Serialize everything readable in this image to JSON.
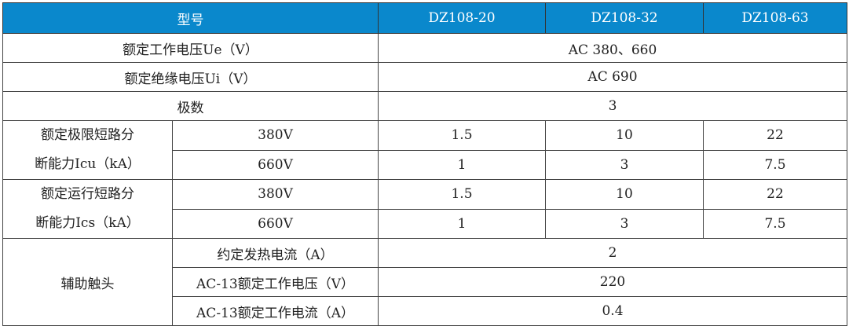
{
  "header": {
    "label": "型号",
    "models": [
      "DZ108-20",
      "DZ108-32",
      "DZ108-63"
    ],
    "color": "#0a88cc"
  },
  "rows": {
    "ue": {
      "label": "额定工作电压Ue（V）",
      "value": "AC 380、660"
    },
    "ui": {
      "label": "额定绝缘电压Ui（V）",
      "value": "AC 690"
    },
    "poles": {
      "label": "极数",
      "value": "3"
    },
    "icu": {
      "label_line1": "额定极限短路分",
      "label_line2": "断能力Icu（kA）",
      "sub": [
        {
          "label": "380V",
          "values": [
            "1.5",
            "10",
            "22"
          ]
        },
        {
          "label": "660V",
          "values": [
            "1",
            "3",
            "7.5"
          ]
        }
      ]
    },
    "ics": {
      "label_line1": "额定运行短路分",
      "label_line2": "断能力Ics（kA）",
      "sub": [
        {
          "label": "380V",
          "values": [
            "1.5",
            "10",
            "22"
          ]
        },
        {
          "label": "660V",
          "values": [
            "1",
            "3",
            "7.5"
          ]
        }
      ]
    },
    "aux": {
      "label": "辅助触头",
      "sub": [
        {
          "label": "约定发热电流（A）",
          "value": "2"
        },
        {
          "label": "AC-13额定工作电压（V）",
          "value": "220"
        },
        {
          "label": "AC-13额定工作电流（A）",
          "value": "0.4"
        }
      ]
    }
  }
}
